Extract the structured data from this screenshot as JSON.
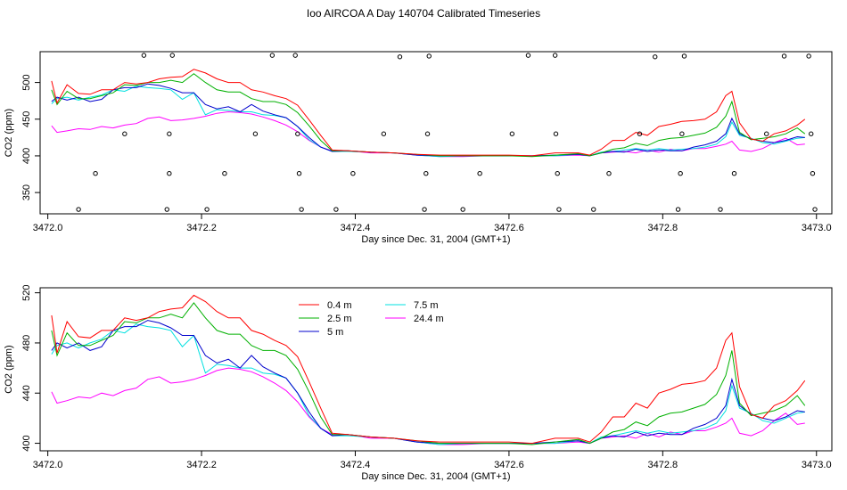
{
  "title": "Ioo AIRCOA A  Day 140704  Calibrated Timeseries",
  "chart_data": [
    {
      "type": "line",
      "xlabel": "Day since Dec. 31, 2004 (GMT+1)",
      "ylabel": "CO2 (ppm)",
      "xlim": [
        3471.99,
        3473.02
      ],
      "ylim": [
        321,
        542
      ],
      "xticks": [
        3472.0,
        3472.2,
        3472.4,
        3472.6,
        3472.8,
        3473.0
      ],
      "xtick_labels": [
        "3472.0",
        "3472.2",
        "3472.4",
        "3472.6",
        "3472.8",
        "3473.0"
      ],
      "yticks": [
        350,
        400,
        450,
        500
      ],
      "ytick_labels": [
        "350",
        "400",
        "450",
        "500"
      ],
      "legend": "none",
      "series": [
        {
          "key": "s04",
          "color": "#ff0000",
          "x": [
            3472.005,
            3472.012,
            3472.025,
            3472.04,
            3472.055,
            3472.07,
            3472.085,
            3472.1,
            3472.115,
            3472.13,
            3472.145,
            3472.16,
            3472.175,
            3472.19,
            3472.205,
            3472.22,
            3472.235,
            3472.25,
            3472.265,
            3472.28,
            3472.295,
            3472.31,
            3472.325,
            3472.34,
            3472.355,
            3472.37,
            3472.39,
            3472.42,
            3472.45,
            3472.48,
            3472.51,
            3472.54,
            3472.57,
            3472.6,
            3472.63,
            3472.66,
            3472.69,
            3472.705,
            3472.72,
            3472.735,
            3472.75,
            3472.765,
            3472.78,
            3472.795,
            3472.81,
            3472.825,
            3472.84,
            3472.855,
            3472.87,
            3472.882,
            3472.89,
            3472.9,
            3472.915,
            3472.93,
            3472.945,
            3472.96,
            3472.975,
            3472.985
          ],
          "y": [
            502,
            472,
            497,
            485,
            484,
            490,
            490,
            500,
            498,
            500,
            505,
            507,
            508,
            518,
            513,
            505,
            500,
            500,
            490,
            487,
            482,
            478,
            469,
            449,
            428,
            408,
            407,
            405,
            404,
            402,
            401,
            401,
            401,
            401,
            400,
            404,
            404,
            401,
            409,
            421,
            421,
            432,
            428,
            440,
            443,
            447,
            448,
            450,
            460,
            482,
            488,
            445,
            423,
            420,
            430,
            434,
            442,
            450
          ]
        },
        {
          "key": "s25",
          "color": "#00b000",
          "x": [
            3472.005,
            3472.012,
            3472.025,
            3472.04,
            3472.055,
            3472.07,
            3472.085,
            3472.1,
            3472.115,
            3472.13,
            3472.145,
            3472.16,
            3472.175,
            3472.19,
            3472.205,
            3472.22,
            3472.235,
            3472.25,
            3472.265,
            3472.28,
            3472.295,
            3472.31,
            3472.325,
            3472.34,
            3472.355,
            3472.37,
            3472.39,
            3472.42,
            3472.45,
            3472.48,
            3472.51,
            3472.54,
            3472.57,
            3472.6,
            3472.63,
            3472.66,
            3472.69,
            3472.705,
            3472.72,
            3472.735,
            3472.75,
            3472.765,
            3472.78,
            3472.795,
            3472.81,
            3472.825,
            3472.84,
            3472.855,
            3472.87,
            3472.882,
            3472.89,
            3472.9,
            3472.915,
            3472.93,
            3472.945,
            3472.96,
            3472.975,
            3472.985
          ],
          "y": [
            490,
            470,
            488,
            478,
            478,
            482,
            486,
            497,
            496,
            500,
            500,
            503,
            500,
            512,
            500,
            490,
            487,
            487,
            478,
            474,
            474,
            470,
            459,
            441,
            421,
            407,
            407,
            405,
            404,
            402,
            400,
            400,
            400,
            400,
            399,
            401,
            403,
            400,
            404,
            409,
            411,
            417,
            414,
            421,
            424,
            425,
            428,
            431,
            439,
            454,
            474,
            432,
            422,
            424,
            426,
            430,
            438,
            430
          ]
        },
        {
          "key": "s5",
          "color": "#0000cc",
          "x": [
            3472.005,
            3472.012,
            3472.025,
            3472.04,
            3472.055,
            3472.07,
            3472.085,
            3472.1,
            3472.115,
            3472.13,
            3472.145,
            3472.16,
            3472.175,
            3472.19,
            3472.205,
            3472.22,
            3472.235,
            3472.25,
            3472.265,
            3472.28,
            3472.295,
            3472.31,
            3472.325,
            3472.34,
            3472.355,
            3472.37,
            3472.39,
            3472.42,
            3472.45,
            3472.48,
            3472.51,
            3472.54,
            3472.57,
            3472.6,
            3472.63,
            3472.66,
            3472.69,
            3472.705,
            3472.72,
            3472.735,
            3472.75,
            3472.765,
            3472.78,
            3472.795,
            3472.81,
            3472.825,
            3472.84,
            3472.855,
            3472.87,
            3472.882,
            3472.89,
            3472.9,
            3472.915,
            3472.93,
            3472.945,
            3472.96,
            3472.975,
            3472.985
          ],
          "y": [
            474,
            480,
            476,
            480,
            474,
            477,
            490,
            493,
            493,
            498,
            496,
            492,
            486,
            486,
            470,
            464,
            467,
            460,
            470,
            461,
            456,
            452,
            440,
            425,
            412,
            406,
            407,
            405,
            404,
            401,
            400,
            400,
            400,
            400,
            400,
            401,
            402,
            400,
            404,
            406,
            405,
            409,
            406,
            408,
            407,
            407,
            412,
            415,
            420,
            430,
            451,
            430,
            423,
            420,
            418,
            421,
            426,
            425
          ]
        },
        {
          "key": "s75",
          "color": "#00e0e0",
          "x": [
            3472.005,
            3472.012,
            3472.025,
            3472.04,
            3472.055,
            3472.07,
            3472.085,
            3472.1,
            3472.115,
            3472.13,
            3472.145,
            3472.16,
            3472.175,
            3472.19,
            3472.205,
            3472.22,
            3472.235,
            3472.25,
            3472.265,
            3472.28,
            3472.295,
            3472.31,
            3472.325,
            3472.34,
            3472.355,
            3472.37,
            3472.39,
            3472.42,
            3472.45,
            3472.48,
            3472.51,
            3472.54,
            3472.57,
            3472.6,
            3472.63,
            3472.66,
            3472.69,
            3472.705,
            3472.72,
            3472.735,
            3472.75,
            3472.765,
            3472.78,
            3472.795,
            3472.81,
            3472.825,
            3472.84,
            3472.855,
            3472.87,
            3472.882,
            3472.89,
            3472.9,
            3472.915,
            3472.93,
            3472.945,
            3472.96,
            3472.975,
            3472.985
          ],
          "y": [
            471,
            478,
            480,
            476,
            480,
            483,
            490,
            488,
            495,
            493,
            492,
            490,
            477,
            486,
            456,
            463,
            462,
            460,
            460,
            456,
            455,
            452,
            440,
            422,
            412,
            406,
            406,
            405,
            404,
            401,
            399,
            400,
            400,
            400,
            400,
            400,
            402,
            400,
            405,
            406,
            408,
            410,
            408,
            410,
            408,
            409,
            410,
            412,
            416,
            426,
            446,
            428,
            424,
            418,
            416,
            420,
            424,
            425
          ]
        },
        {
          "key": "s244",
          "color": "#ff00ff",
          "x": [
            3472.005,
            3472.012,
            3472.025,
            3472.04,
            3472.055,
            3472.07,
            3472.085,
            3472.1,
            3472.115,
            3472.13,
            3472.145,
            3472.16,
            3472.175,
            3472.19,
            3472.205,
            3472.22,
            3472.235,
            3472.25,
            3472.265,
            3472.28,
            3472.295,
            3472.31,
            3472.325,
            3472.34,
            3472.355,
            3472.37,
            3472.39,
            3472.42,
            3472.45,
            3472.48,
            3472.51,
            3472.54,
            3472.57,
            3472.6,
            3472.63,
            3472.66,
            3472.69,
            3472.705,
            3472.72,
            3472.735,
            3472.75,
            3472.765,
            3472.78,
            3472.795,
            3472.81,
            3472.825,
            3472.84,
            3472.855,
            3472.87,
            3472.882,
            3472.89,
            3472.9,
            3472.915,
            3472.93,
            3472.945,
            3472.96,
            3472.975,
            3472.985
          ],
          "y": [
            441,
            432,
            434,
            437,
            436,
            440,
            438,
            442,
            444,
            451,
            453,
            448,
            449,
            451,
            454,
            458,
            460,
            459,
            457,
            453,
            448,
            442,
            433,
            421,
            412,
            407,
            407,
            404,
            404,
            401,
            399,
            399,
            400,
            400,
            400,
            400,
            401,
            400,
            404,
            405,
            406,
            404,
            408,
            405,
            409,
            407,
            410,
            410,
            413,
            416,
            420,
            408,
            406,
            410,
            418,
            424,
            415,
            416
          ]
        }
      ],
      "markers": [
        {
          "x": 3472.04,
          "y": 327
        },
        {
          "x": 3472.062,
          "y": 376
        },
        {
          "x": 3472.1,
          "y": 430
        },
        {
          "x": 3472.125,
          "y": 537
        },
        {
          "x": 3472.155,
          "y": 327
        },
        {
          "x": 3472.158,
          "y": 376
        },
        {
          "x": 3472.158,
          "y": 430
        },
        {
          "x": 3472.162,
          "y": 537
        },
        {
          "x": 3472.207,
          "y": 327
        },
        {
          "x": 3472.23,
          "y": 376
        },
        {
          "x": 3472.27,
          "y": 430
        },
        {
          "x": 3472.292,
          "y": 537
        },
        {
          "x": 3472.322,
          "y": 537
        },
        {
          "x": 3472.325,
          "y": 430
        },
        {
          "x": 3472.327,
          "y": 376
        },
        {
          "x": 3472.33,
          "y": 327
        },
        {
          "x": 3472.375,
          "y": 327
        },
        {
          "x": 3472.397,
          "y": 376
        },
        {
          "x": 3472.437,
          "y": 430
        },
        {
          "x": 3472.458,
          "y": 535
        },
        {
          "x": 3472.49,
          "y": 327
        },
        {
          "x": 3472.492,
          "y": 376
        },
        {
          "x": 3472.494,
          "y": 430
        },
        {
          "x": 3472.496,
          "y": 536
        },
        {
          "x": 3472.54,
          "y": 327
        },
        {
          "x": 3472.562,
          "y": 376
        },
        {
          "x": 3472.604,
          "y": 430
        },
        {
          "x": 3472.625,
          "y": 537
        },
        {
          "x": 3472.66,
          "y": 537
        },
        {
          "x": 3472.661,
          "y": 430
        },
        {
          "x": 3472.663,
          "y": 376
        },
        {
          "x": 3472.665,
          "y": 327
        },
        {
          "x": 3472.71,
          "y": 327
        },
        {
          "x": 3472.73,
          "y": 376
        },
        {
          "x": 3472.77,
          "y": 430
        },
        {
          "x": 3472.79,
          "y": 535
        },
        {
          "x": 3472.82,
          "y": 327
        },
        {
          "x": 3472.823,
          "y": 376
        },
        {
          "x": 3472.825,
          "y": 430
        },
        {
          "x": 3472.828,
          "y": 536
        },
        {
          "x": 3472.875,
          "y": 327
        },
        {
          "x": 3472.893,
          "y": 376
        },
        {
          "x": 3472.935,
          "y": 430
        },
        {
          "x": 3472.958,
          "y": 536
        },
        {
          "x": 3472.99,
          "y": 536
        },
        {
          "x": 3472.993,
          "y": 430
        },
        {
          "x": 3472.995,
          "y": 376
        },
        {
          "x": 3472.998,
          "y": 327
        }
      ]
    },
    {
      "type": "line",
      "xlabel": "Day since Dec. 31, 2004 (GMT+1)",
      "ylabel": "CO2 (ppm)",
      "xlim": [
        3471.99,
        3473.02
      ],
      "ylim": [
        394,
        524
      ],
      "xticks": [
        3472.0,
        3472.2,
        3472.4,
        3472.6,
        3472.8,
        3473.0
      ],
      "xtick_labels": [
        "3472.0",
        "3472.2",
        "3472.4",
        "3472.6",
        "3472.8",
        "3473.0"
      ],
      "yticks": [
        400,
        440,
        480,
        520
      ],
      "ytick_labels": [
        "400",
        "440",
        "480",
        "520"
      ],
      "legend": "top-left",
      "series": [
        {
          "name": "0.4 m",
          "key": "s04",
          "color": "#ff0000"
        },
        {
          "name": "2.5 m",
          "key": "s25",
          "color": "#00b000"
        },
        {
          "name": "5 m",
          "key": "s5",
          "color": "#0000cc"
        },
        {
          "name": "7.5 m",
          "key": "s75",
          "color": "#00e0e0"
        },
        {
          "name": "24.4 m",
          "key": "s244",
          "color": "#ff00ff"
        }
      ]
    }
  ]
}
